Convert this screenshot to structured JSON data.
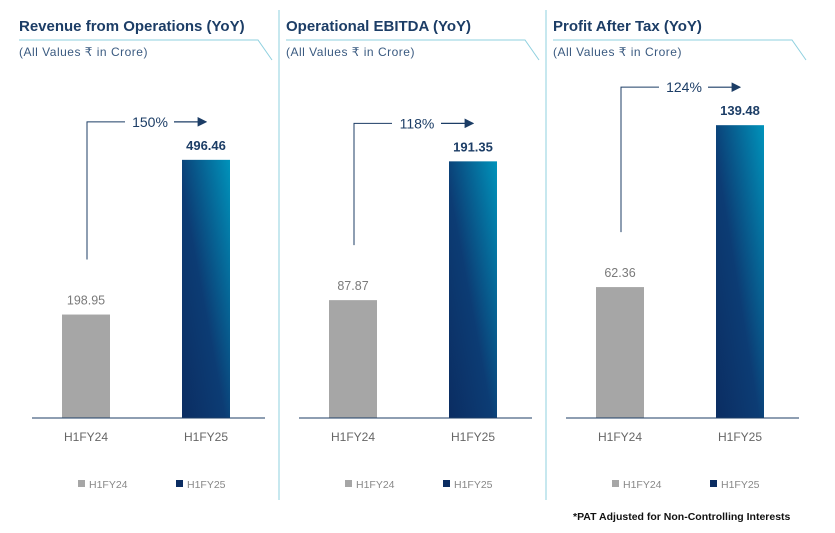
{
  "chart_data": [
    {
      "type": "bar",
      "title": "Revenue from Operations (YoY)",
      "subtitle": "(All Values ₹ in Crore)",
      "categories": [
        "H1FY24",
        "H1FY25"
      ],
      "values": [
        198.95,
        496.46
      ],
      "value_labels": [
        "198.95",
        "496.46"
      ],
      "growth": "150%",
      "ylim": [
        0,
        650
      ],
      "legend": [
        "H1FY24",
        "H1FY25"
      ],
      "legend_position": "bottom"
    },
    {
      "type": "bar",
      "title": "Operational EBITDA (YoY)",
      "subtitle": "(All Values ₹ in Crore)",
      "categories": [
        "H1FY24",
        "H1FY25"
      ],
      "values": [
        87.87,
        191.35
      ],
      "value_labels": [
        "87.87",
        "191.35"
      ],
      "growth": "118%",
      "ylim": [
        0,
        252
      ],
      "legend": [
        "H1FY24",
        "H1FY25"
      ],
      "legend_position": "bottom"
    },
    {
      "type": "bar",
      "title": "Profit After Tax (YoY)",
      "subtitle": "(All Values ₹ in Crore)",
      "categories": [
        "H1FY24",
        "H1FY25"
      ],
      "values": [
        62.36,
        139.48
      ],
      "value_labels": [
        "62.36",
        "139.48"
      ],
      "growth": "124%",
      "ylim": [
        0,
        161
      ],
      "legend": [
        "H1FY24",
        "H1FY25"
      ],
      "legend_position": "bottom"
    }
  ],
  "footnote": "*PAT Adjusted for Non-Controlling Interests",
  "colors": {
    "gray": "#a6a6a6",
    "navy": "#0b2d62",
    "teal": "#0093bb",
    "line": "#1c3d66",
    "divider": "#8fd0df"
  }
}
